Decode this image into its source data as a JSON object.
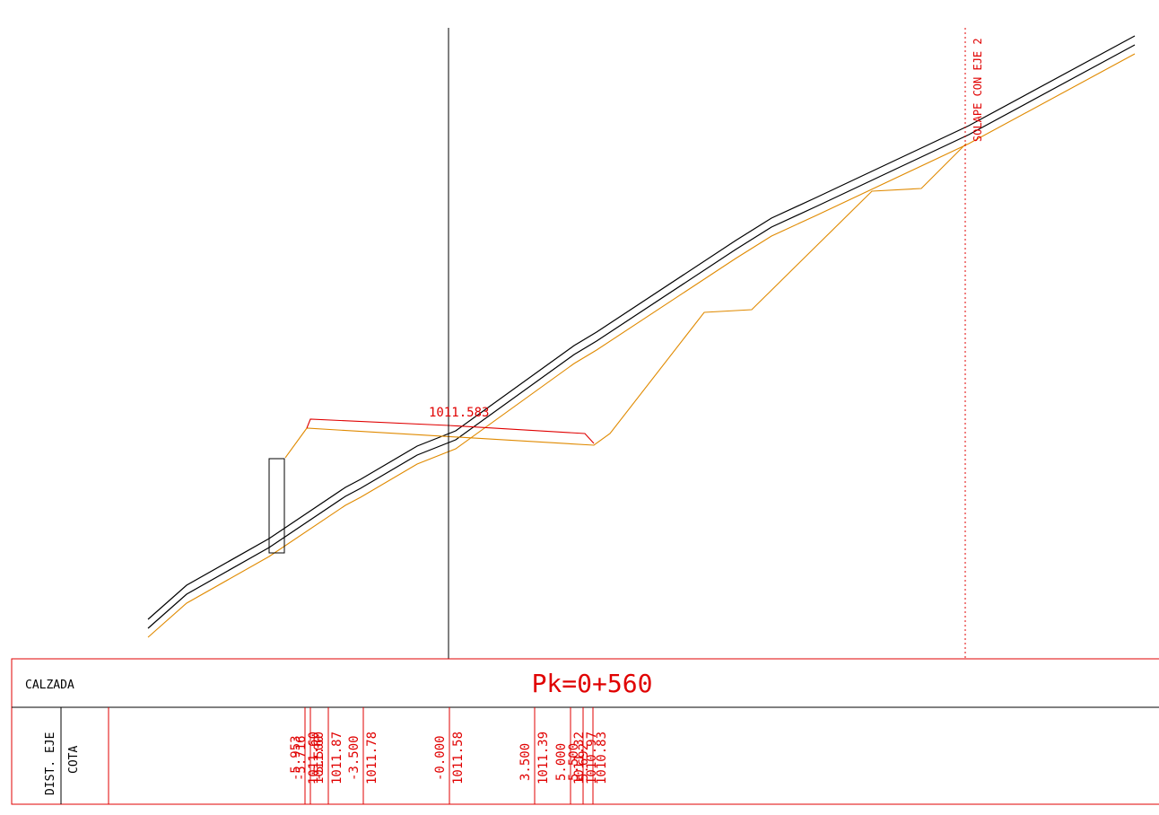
{
  "colors": {
    "terrain": "#000000",
    "original_ground": "#e08a00",
    "design": "#e00000",
    "frame": "#e00000",
    "header_text": "#000000"
  },
  "annotations": {
    "center_elevation": "1011.583",
    "overlap_label": "SOLAPE CON EJE 2"
  },
  "band": {
    "row_label_calzada": "CALZADA",
    "pk_label": "Pk=0+560",
    "row_label_dist": "DIST. EJE",
    "row_label_cota": "COTA",
    "columns": [
      {
        "dist": "-5.953",
        "cota": "1011.60"
      },
      {
        "dist": "-5.716",
        "cota": "1011.60"
      },
      {
        "dist": "-5.500",
        "cota": "1011.87"
      },
      {
        "dist": "-3.500",
        "cota": "1011.78"
      },
      {
        "dist": "-0.000",
        "cota": "1011.58"
      },
      {
        "dist": "3.500",
        "cota": "1011.39"
      },
      {
        "dist": "5.000",
        "cota": "1011.32"
      },
      {
        "dist": "5.500",
        "cota": "1010.97"
      },
      {
        "dist": "5.692",
        "cota": "1010.83"
      }
    ]
  }
}
